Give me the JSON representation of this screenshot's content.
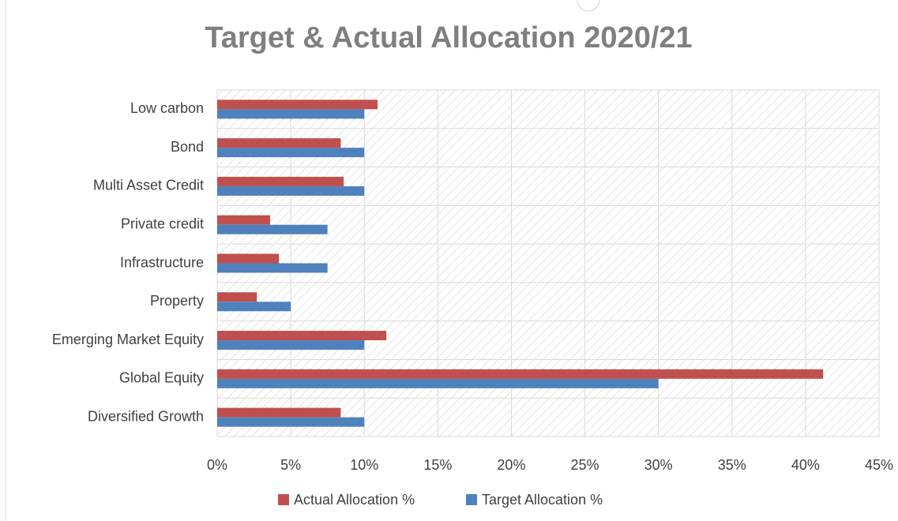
{
  "chart_data": {
    "type": "hbar",
    "title": "Target & Actual Allocation 2020/21",
    "categories": [
      "Low carbon",
      "Bond",
      "Multi Asset Credit",
      "Private credit",
      "Infrastructure",
      "Property",
      "Emerging Market Equity",
      "Global Equity",
      "Diversified Growth"
    ],
    "series": [
      {
        "name": "Actual Allocation %",
        "color": "#c0504d",
        "values": [
          10.9,
          8.4,
          8.6,
          3.6,
          4.2,
          2.7,
          11.5,
          41.2,
          8.4
        ]
      },
      {
        "name": "Target Allocation %",
        "color": "#4f81bd",
        "values": [
          10,
          10,
          10,
          7.5,
          7.5,
          5,
          10,
          30,
          10
        ]
      }
    ],
    "xlim": [
      0,
      45
    ],
    "xticks": [
      {
        "value": 0,
        "label": "0%"
      },
      {
        "value": 5,
        "label": "5%"
      },
      {
        "value": 10,
        "label": "10%"
      },
      {
        "value": 15,
        "label": "15%"
      },
      {
        "value": 20,
        "label": "20%"
      },
      {
        "value": 25,
        "label": "25%"
      },
      {
        "value": 30,
        "label": "30%"
      },
      {
        "value": 35,
        "label": "35%"
      },
      {
        "value": 40,
        "label": "40%"
      },
      {
        "value": 45,
        "label": "45%"
      }
    ],
    "grid": true,
    "legend": "bottom"
  }
}
